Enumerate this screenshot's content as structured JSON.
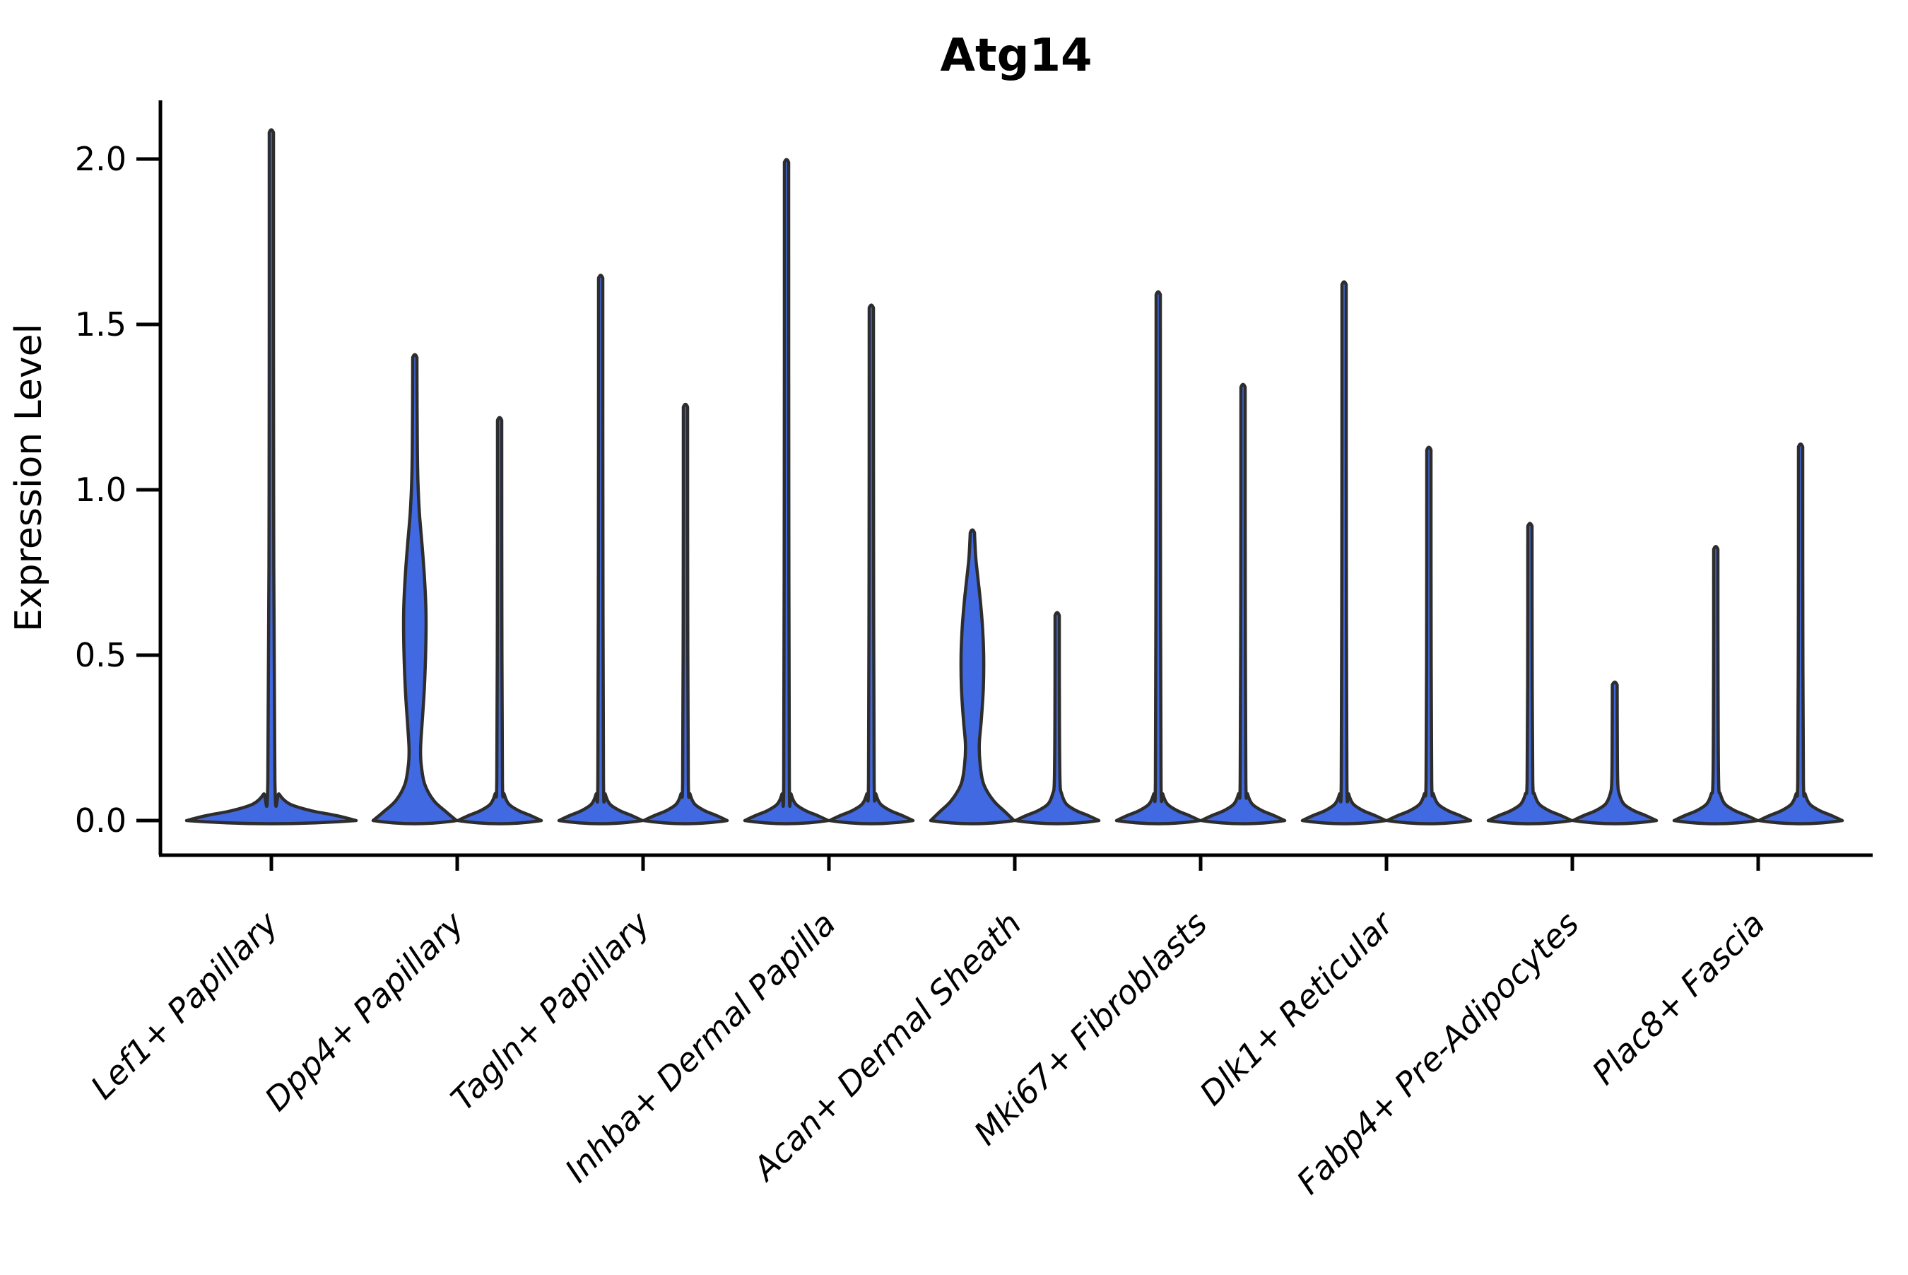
{
  "chart_data": {
    "type": "violin",
    "title": "Atg14",
    "ylabel": "Expression Level",
    "xlabel": "",
    "grid": false,
    "legend": null,
    "ylim": [
      0,
      2.15
    ],
    "yticks": [
      0.0,
      0.5,
      1.0,
      1.5,
      2.0
    ],
    "ytick_labels": [
      "0.0",
      "0.5",
      "1.0",
      "1.5",
      "2.0"
    ],
    "categories": [
      "Lef1+ Papillary",
      "Dpp4+ Papillary",
      "Tagln+ Papillary",
      "Inhba+ Dermal Papilla",
      "Acan+ Dermal Sheath",
      "Mki67+ Fibroblasts",
      "Dlk1+ Reticular",
      "Fabp4+ Pre-Adipocytes",
      "Plac8+ Fascia"
    ],
    "colors": {
      "violin_fill": "#4169E1",
      "violin_stroke": "#2D2D2D",
      "axis": "#000000"
    },
    "violins": [
      {
        "cat": 0,
        "position": "center",
        "max": 2.08,
        "shape": "spike",
        "profile": [
          [
            0,
            120
          ],
          [
            0.015,
            92
          ],
          [
            0.03,
            56
          ],
          [
            0.05,
            26
          ],
          [
            0.08,
            11
          ],
          [
            0.12,
            5
          ],
          [
            1.0,
            3.2
          ],
          [
            2.08,
            3
          ]
        ]
      },
      {
        "cat": 1,
        "position": "left",
        "max": 1.4,
        "shape": "body",
        "profile": [
          [
            0,
            59
          ],
          [
            0.025,
            45
          ],
          [
            0.06,
            27
          ],
          [
            0.11,
            14
          ],
          [
            0.17,
            9
          ],
          [
            0.22,
            8.2
          ],
          [
            0.3,
            10.5
          ],
          [
            0.4,
            13.5
          ],
          [
            0.52,
            15.5
          ],
          [
            0.63,
            15.8
          ],
          [
            0.74,
            13.5
          ],
          [
            0.84,
            10
          ],
          [
            0.93,
            6.5
          ],
          [
            1.02,
            4.5
          ],
          [
            1.12,
            3.6
          ],
          [
            1.25,
            3.2
          ],
          [
            1.4,
            3
          ]
        ]
      },
      {
        "cat": 1,
        "position": "right",
        "max": 1.21,
        "shape": "spike",
        "profile": [
          [
            0,
            59
          ],
          [
            0.015,
            44
          ],
          [
            0.03,
            27
          ],
          [
            0.05,
            13
          ],
          [
            0.08,
            6.5
          ],
          [
            0.12,
            4
          ],
          [
            0.6,
            3.2
          ],
          [
            1.21,
            3
          ]
        ]
      },
      {
        "cat": 2,
        "position": "left",
        "max": 1.64,
        "shape": "spike",
        "profile": [
          [
            0,
            59
          ],
          [
            0.015,
            44
          ],
          [
            0.03,
            27
          ],
          [
            0.05,
            13
          ],
          [
            0.08,
            6.5
          ],
          [
            0.12,
            4
          ],
          [
            0.82,
            3.2
          ],
          [
            1.64,
            3
          ]
        ]
      },
      {
        "cat": 2,
        "position": "right",
        "max": 1.25,
        "shape": "spike",
        "profile": [
          [
            0,
            59
          ],
          [
            0.015,
            44
          ],
          [
            0.03,
            27
          ],
          [
            0.05,
            13
          ],
          [
            0.08,
            6.5
          ],
          [
            0.12,
            4
          ],
          [
            0.62,
            3.2
          ],
          [
            1.25,
            3
          ]
        ]
      },
      {
        "cat": 3,
        "position": "left",
        "max": 1.99,
        "shape": "spike",
        "profile": [
          [
            0,
            59
          ],
          [
            0.015,
            44
          ],
          [
            0.03,
            27
          ],
          [
            0.05,
            13
          ],
          [
            0.08,
            6.5
          ],
          [
            0.12,
            4
          ],
          [
            1.0,
            3.2
          ],
          [
            1.99,
            3
          ]
        ]
      },
      {
        "cat": 3,
        "position": "right",
        "max": 1.55,
        "shape": "spike",
        "profile": [
          [
            0,
            59
          ],
          [
            0.015,
            44
          ],
          [
            0.03,
            27
          ],
          [
            0.05,
            13
          ],
          [
            0.08,
            6.5
          ],
          [
            0.12,
            4
          ],
          [
            0.78,
            3.2
          ],
          [
            1.55,
            3
          ]
        ]
      },
      {
        "cat": 4,
        "position": "left",
        "max": 0.87,
        "shape": "body",
        "profile": [
          [
            0,
            59
          ],
          [
            0.025,
            47
          ],
          [
            0.06,
            30
          ],
          [
            0.11,
            16
          ],
          [
            0.17,
            11
          ],
          [
            0.23,
            9.8
          ],
          [
            0.3,
            12.5
          ],
          [
            0.4,
            15.5
          ],
          [
            0.5,
            16
          ],
          [
            0.58,
            14.5
          ],
          [
            0.66,
            11.5
          ],
          [
            0.73,
            8
          ],
          [
            0.79,
            5
          ],
          [
            0.84,
            3.6
          ],
          [
            0.87,
            3
          ]
        ]
      },
      {
        "cat": 4,
        "position": "right",
        "max": 0.62,
        "shape": "spike",
        "profile": [
          [
            0,
            59
          ],
          [
            0.015,
            44
          ],
          [
            0.03,
            27
          ],
          [
            0.05,
            13
          ],
          [
            0.08,
            6.5
          ],
          [
            0.12,
            4
          ],
          [
            0.31,
            3.2
          ],
          [
            0.62,
            3
          ]
        ]
      },
      {
        "cat": 5,
        "position": "left",
        "max": 1.59,
        "shape": "spike",
        "profile": [
          [
            0,
            59
          ],
          [
            0.015,
            44
          ],
          [
            0.03,
            27
          ],
          [
            0.05,
            13
          ],
          [
            0.08,
            6.5
          ],
          [
            0.12,
            4
          ],
          [
            0.8,
            3.2
          ],
          [
            1.59,
            3
          ]
        ]
      },
      {
        "cat": 5,
        "position": "right",
        "max": 1.31,
        "shape": "spike",
        "profile": [
          [
            0,
            59
          ],
          [
            0.015,
            44
          ],
          [
            0.03,
            27
          ],
          [
            0.05,
            13
          ],
          [
            0.08,
            6.5
          ],
          [
            0.12,
            4
          ],
          [
            0.66,
            3.2
          ],
          [
            1.31,
            3
          ]
        ]
      },
      {
        "cat": 6,
        "position": "left",
        "max": 1.62,
        "shape": "spike",
        "profile": [
          [
            0,
            59
          ],
          [
            0.015,
            44
          ],
          [
            0.03,
            27
          ],
          [
            0.05,
            13
          ],
          [
            0.08,
            6.5
          ],
          [
            0.12,
            4
          ],
          [
            0.81,
            3.2
          ],
          [
            1.62,
            3
          ]
        ]
      },
      {
        "cat": 6,
        "position": "right",
        "max": 1.12,
        "shape": "spike",
        "profile": [
          [
            0,
            59
          ],
          [
            0.015,
            44
          ],
          [
            0.03,
            27
          ],
          [
            0.05,
            13
          ],
          [
            0.08,
            6.5
          ],
          [
            0.12,
            4
          ],
          [
            0.56,
            3.2
          ],
          [
            1.12,
            3
          ]
        ]
      },
      {
        "cat": 7,
        "position": "left",
        "max": 0.89,
        "shape": "spike",
        "profile": [
          [
            0,
            59
          ],
          [
            0.015,
            44
          ],
          [
            0.03,
            27
          ],
          [
            0.05,
            13
          ],
          [
            0.08,
            6.5
          ],
          [
            0.12,
            4
          ],
          [
            0.45,
            3.2
          ],
          [
            0.89,
            3
          ]
        ]
      },
      {
        "cat": 7,
        "position": "right",
        "max": 0.41,
        "shape": "spike",
        "profile": [
          [
            0,
            59
          ],
          [
            0.015,
            44
          ],
          [
            0.03,
            27
          ],
          [
            0.05,
            13
          ],
          [
            0.08,
            6.5
          ],
          [
            0.12,
            4.2
          ],
          [
            0.26,
            3.6
          ],
          [
            0.41,
            3.4
          ]
        ]
      },
      {
        "cat": 8,
        "position": "left",
        "max": 0.82,
        "shape": "spike",
        "profile": [
          [
            0,
            59
          ],
          [
            0.015,
            44
          ],
          [
            0.03,
            27
          ],
          [
            0.05,
            13
          ],
          [
            0.08,
            6.5
          ],
          [
            0.12,
            4
          ],
          [
            0.41,
            3.2
          ],
          [
            0.82,
            3
          ]
        ]
      },
      {
        "cat": 8,
        "position": "right",
        "max": 1.13,
        "shape": "spike",
        "profile": [
          [
            0,
            59
          ],
          [
            0.015,
            44
          ],
          [
            0.03,
            27
          ],
          [
            0.05,
            13
          ],
          [
            0.08,
            6.5
          ],
          [
            0.12,
            4
          ],
          [
            0.57,
            3.2
          ],
          [
            1.13,
            3
          ]
        ]
      }
    ]
  }
}
